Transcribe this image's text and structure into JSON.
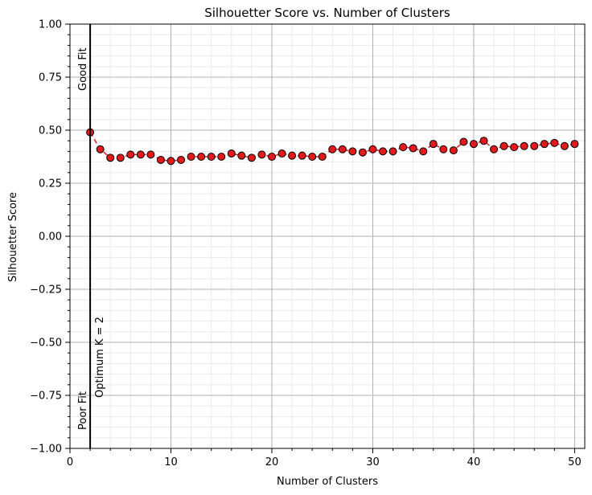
{
  "chart_data": {
    "type": "line",
    "title": "Silhouetter Score vs. Number of Clusters",
    "xlabel": "Number of Clusters",
    "ylabel": "Silhouetter Score",
    "xlim": [
      0,
      51
    ],
    "ylim": [
      -1.0,
      1.0
    ],
    "grid": true,
    "minor_grid": true,
    "x_ticks": [
      0,
      10,
      20,
      30,
      40,
      50
    ],
    "x_tick_labels": [
      "0",
      "10",
      "20",
      "30",
      "40",
      "50"
    ],
    "y_ticks": [
      -1.0,
      -0.75,
      -0.5,
      -0.25,
      0.0,
      0.25,
      0.5,
      0.75,
      1.0
    ],
    "y_tick_labels": [
      "−1.00",
      "−0.75",
      "−0.50",
      "−0.25",
      "0.00",
      "0.25",
      "0.50",
      "0.75",
      "1.00"
    ],
    "series": [
      {
        "color": "#e31a1c",
        "line_style": "dashed",
        "marker": "circle",
        "marker_edge_color": "#000000",
        "x": [
          2,
          3,
          4,
          5,
          6,
          7,
          8,
          9,
          10,
          11,
          12,
          13,
          14,
          15,
          16,
          17,
          18,
          19,
          20,
          21,
          22,
          23,
          24,
          25,
          26,
          27,
          28,
          29,
          30,
          31,
          32,
          33,
          34,
          35,
          36,
          37,
          38,
          39,
          40,
          41,
          42,
          43,
          44,
          45,
          46,
          47,
          48,
          49,
          50
        ],
        "y": [
          0.49,
          0.41,
          0.37,
          0.37,
          0.385,
          0.385,
          0.385,
          0.36,
          0.355,
          0.36,
          0.375,
          0.375,
          0.375,
          0.375,
          0.39,
          0.38,
          0.37,
          0.385,
          0.375,
          0.39,
          0.38,
          0.38,
          0.375,
          0.375,
          0.41,
          0.41,
          0.4,
          0.395,
          0.41,
          0.4,
          0.4,
          0.42,
          0.415,
          0.4,
          0.435,
          0.41,
          0.405,
          0.445,
          0.435,
          0.45,
          0.41,
          0.425,
          0.42,
          0.425,
          0.425,
          0.435,
          0.44,
          0.425,
          0.435
        ]
      }
    ],
    "reference_line": {
      "x": 2,
      "color": "#000000"
    },
    "annotations": {
      "optimum": "Optimum K = 2",
      "good_fit": "Good Fit",
      "poor_fit": "Poor Fit"
    }
  }
}
